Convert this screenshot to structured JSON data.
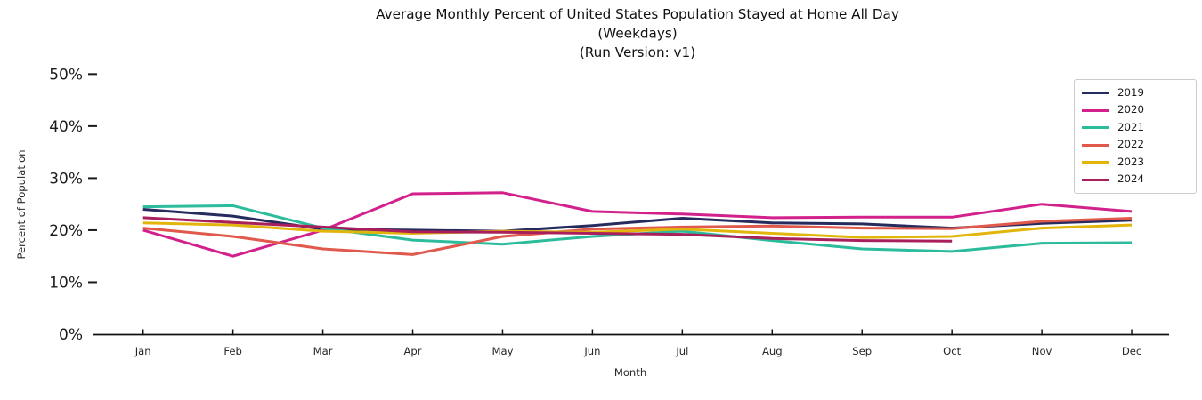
{
  "title": {
    "line1": "Average Monthly Percent of United States Population Stayed at Home All Day",
    "line2": "(Weekdays)",
    "line3": "(Run Version: v1)"
  },
  "axes": {
    "x_label": "Month",
    "y_label": "Percent of Population",
    "x_tick_labels": [
      "Jan",
      "Feb",
      "Mar",
      "Apr",
      "May",
      "Jun",
      "Jul",
      "Aug",
      "Sep",
      "Oct",
      "Nov",
      "Dec"
    ],
    "y_tick_labels": [
      "0%",
      "10%",
      "20%",
      "30%",
      "40%",
      "50%"
    ],
    "y_tick_values": [
      0,
      10,
      20,
      30,
      40,
      50
    ]
  },
  "legend": {
    "position": "upper right",
    "entries": [
      "2019",
      "2020",
      "2021",
      "2022",
      "2023",
      "2024"
    ]
  },
  "chart_data": {
    "type": "line",
    "title": "Average Monthly Percent of United States Population Stayed at Home All Day (Weekdays) (Run Version: v1)",
    "xlabel": "Month",
    "ylabel": "Percent of Population",
    "ylim": [
      0,
      52
    ],
    "grid": false,
    "legend_position": "upper right",
    "categories": [
      "Jan",
      "Feb",
      "Mar",
      "Apr",
      "May",
      "Jun",
      "Jul",
      "Aug",
      "Sep",
      "Oct",
      "Nov",
      "Dec"
    ],
    "series": [
      {
        "name": "2019",
        "color": "#262b5e",
        "values": [
          24.0,
          22.7,
          20.2,
          20.0,
          19.8,
          20.9,
          22.3,
          21.4,
          21.2,
          20.4,
          21.3,
          21.9
        ]
      },
      {
        "name": "2020",
        "color": "#d3218c",
        "values": [
          20.0,
          15.0,
          20.0,
          27.0,
          27.2,
          23.6,
          23.1,
          22.4,
          22.5,
          22.5,
          25.0,
          23.6
        ]
      },
      {
        "name": "2021",
        "color": "#2cbc9c",
        "values": [
          24.5,
          24.7,
          20.4,
          18.1,
          17.3,
          18.8,
          19.8,
          18.0,
          16.4,
          15.9,
          17.5,
          17.6
        ]
      },
      {
        "name": "2022",
        "color": "#e0594c",
        "values": [
          20.4,
          18.8,
          16.4,
          15.3,
          18.8,
          20.2,
          20.6,
          20.8,
          20.4,
          20.3,
          21.7,
          22.3
        ]
      },
      {
        "name": "2023",
        "color": "#e2b50c",
        "values": [
          21.4,
          21.0,
          19.8,
          19.4,
          19.8,
          19.6,
          20.2,
          19.4,
          18.6,
          18.8,
          20.4,
          21.0
        ]
      },
      {
        "name": "2024",
        "color": "#a81f5c",
        "values": [
          22.4,
          21.5,
          20.6,
          19.7,
          19.6,
          19.4,
          19.2,
          18.4,
          18.0,
          17.9,
          null,
          null
        ]
      }
    ]
  }
}
